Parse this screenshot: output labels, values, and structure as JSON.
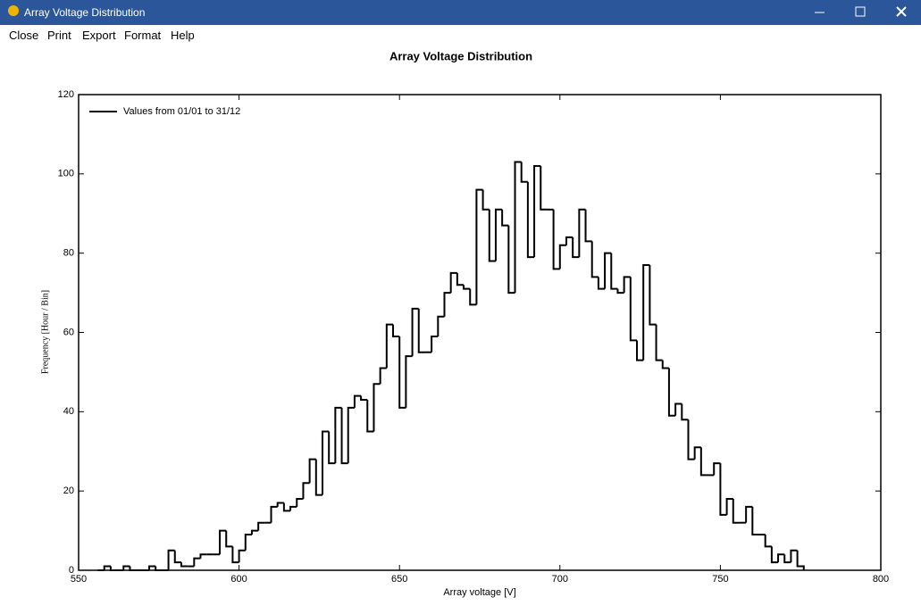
{
  "window": {
    "title": "Array Voltage Distribution"
  },
  "menu": [
    "Close",
    "Print",
    "Export",
    "Format",
    "Help"
  ],
  "chart_data": {
    "type": "histogram",
    "title": "Array Voltage Distribution",
    "x_label": "Array voltage [V]",
    "y_label": "Frequency [Hour / Bin]",
    "series": [
      {
        "name": "Values from 01/01 to 31/12",
        "color": "#000000"
      }
    ],
    "bins": [
      556,
      558,
      560,
      562,
      564,
      566,
      568,
      570,
      572,
      574,
      576,
      578,
      580,
      582,
      584,
      586,
      588,
      590,
      592,
      594,
      596,
      598,
      600,
      602,
      604,
      606,
      608,
      610,
      612,
      614,
      616,
      618,
      620,
      622,
      624,
      626,
      628,
      630,
      632,
      634,
      636,
      638,
      640,
      642,
      644,
      646,
      648,
      650,
      652,
      654,
      656,
      658,
      660,
      662,
      664,
      666,
      668,
      670,
      672,
      674,
      676,
      678,
      680,
      682,
      684,
      686,
      688,
      690,
      692,
      694,
      696,
      698,
      700,
      702,
      704,
      706,
      708,
      710,
      712,
      714,
      716,
      718,
      720,
      722,
      724,
      726,
      728,
      730,
      732,
      734,
      736,
      738,
      740,
      742,
      744,
      746,
      748,
      750,
      752,
      754,
      756,
      758,
      760,
      762,
      764,
      766,
      768,
      770,
      772,
      774,
      776
    ],
    "values": [
      0,
      1,
      0,
      0,
      1,
      0,
      0,
      0,
      1,
      0,
      0,
      5,
      2,
      1,
      1,
      3,
      4,
      4,
      4,
      10,
      6,
      2,
      5,
      9,
      10,
      12,
      12,
      16,
      17,
      15,
      16,
      18,
      22,
      28,
      19,
      35,
      27,
      41,
      27,
      41,
      44,
      43,
      35,
      47,
      51,
      62,
      59,
      41,
      54,
      66,
      55,
      55,
      59,
      64,
      70,
      75,
      72,
      71,
      67,
      96,
      91,
      78,
      91,
      87,
      70,
      103,
      98,
      79,
      102,
      91,
      91,
      76,
      82,
      84,
      79,
      91,
      83,
      74,
      71,
      80,
      71,
      70,
      74,
      58,
      53,
      77,
      62,
      53,
      51,
      39,
      42,
      38,
      28,
      31,
      24,
      24,
      27,
      14,
      18,
      12,
      12,
      16,
      9,
      9,
      6,
      2,
      4,
      2,
      5,
      1
    ],
    "xlim": [
      550,
      800
    ],
    "xticks": [
      550,
      600,
      650,
      700,
      750,
      800
    ],
    "ylim": [
      0,
      120
    ],
    "yticks": [
      0,
      20,
      40,
      60,
      80,
      100,
      120
    ],
    "legend": "upper left"
  }
}
